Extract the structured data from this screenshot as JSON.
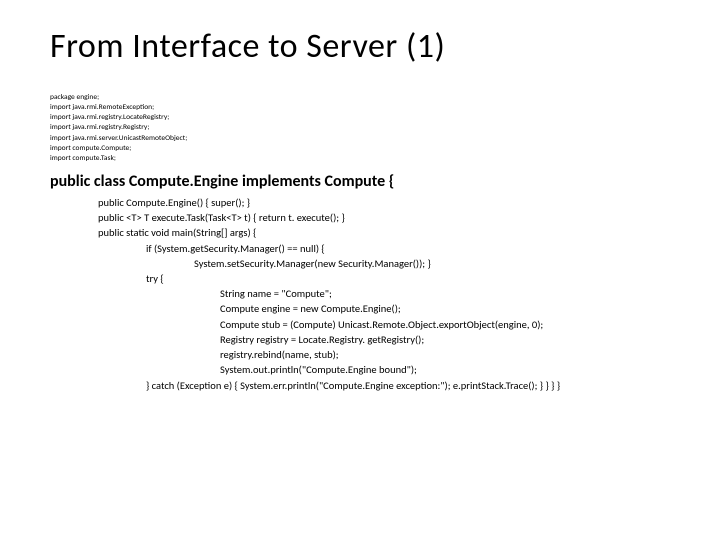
{
  "title": "From Interface to Server (1)",
  "imports": [
    "package engine;",
    "import java.rmi.RemoteException;",
    "import java.rmi.registry.LocateRegistry;",
    "import java.rmi.registry.Registry;",
    "import java.rmi.server.UnicastRemoteObject;",
    "import compute.Compute;",
    "import compute.Task;"
  ],
  "classDecl": "public class Compute.Engine implements Compute {",
  "body": [
    {
      "indent": 1,
      "text": "public Compute.Engine() {   super();  }"
    },
    {
      "indent": 1,
      "text": "public <T> T execute.Task(Task<T> t) { return t. execute(); }"
    },
    {
      "indent": 1,
      "text": "public static void main(String[] args) {"
    },
    {
      "indent": 2,
      "text": "if (System.getSecurity.Manager() == null) {"
    },
    {
      "indent": 3,
      "text": "System.setSecurity.Manager(new Security.Manager());  }"
    },
    {
      "indent": 2,
      "text": "try {"
    },
    {
      "indent": 4,
      "text": "String name = \"Compute\";"
    },
    {
      "indent": 4,
      "text": "Compute engine = new Compute.Engine();"
    },
    {
      "indent": 4,
      "text": "Compute stub = (Compute) Unicast.Remote.Object.exportObject(engine, 0);"
    },
    {
      "indent": 4,
      "text": "Registry registry = Locate.Registry. getRegistry();"
    },
    {
      "indent": 4,
      "text": "registry.rebind(name, stub);"
    },
    {
      "indent": 4,
      "text": "System.out.println(\"Compute.Engine bound\");"
    },
    {
      "indent": 2,
      "text": "} catch (Exception e) { System.err.println(\"Compute.Engine exception:\"); e.printStack.Trace(); } } } }"
    }
  ]
}
